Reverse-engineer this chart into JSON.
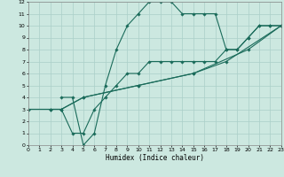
{
  "xlabel": "Humidex (Indice chaleur)",
  "xlim": [
    0,
    23
  ],
  "ylim": [
    0,
    12
  ],
  "xticks": [
    0,
    1,
    2,
    3,
    4,
    5,
    6,
    7,
    8,
    9,
    10,
    11,
    12,
    13,
    14,
    15,
    16,
    17,
    18,
    19,
    20,
    21,
    22,
    23
  ],
  "yticks": [
    0,
    1,
    2,
    3,
    4,
    5,
    6,
    7,
    8,
    9,
    10,
    11,
    12
  ],
  "bg_color": "#cce8e0",
  "line_color": "#1a6b5a",
  "grid_color": "#aacfc8",
  "curves": [
    {
      "x": [
        3,
        4,
        5,
        6,
        7,
        8,
        9,
        10,
        11,
        12,
        13,
        14,
        15,
        16,
        17,
        18,
        19,
        20,
        21,
        22,
        23
      ],
      "y": [
        4,
        4,
        0,
        1,
        5,
        8,
        10,
        11,
        12,
        12,
        12,
        11,
        11,
        11,
        11,
        8,
        8,
        9,
        10,
        10,
        10
      ]
    },
    {
      "x": [
        2,
        3,
        4,
        5,
        6,
        7,
        8,
        9,
        10,
        11,
        12,
        13,
        14,
        15,
        16,
        17,
        18,
        19,
        20,
        21,
        22,
        23
      ],
      "y": [
        3,
        3,
        1,
        1,
        3,
        4,
        5,
        6,
        6,
        7,
        7,
        7,
        7,
        7,
        7,
        7,
        8,
        8,
        9,
        10,
        10,
        10
      ]
    },
    {
      "x": [
        0,
        2,
        3,
        5,
        10,
        15,
        20,
        23
      ],
      "y": [
        3,
        3,
        3,
        4,
        5,
        6,
        8,
        10
      ]
    },
    {
      "x": [
        0,
        3,
        5,
        10,
        15,
        18,
        23
      ],
      "y": [
        3,
        3,
        4,
        5,
        6,
        7,
        10
      ]
    }
  ]
}
